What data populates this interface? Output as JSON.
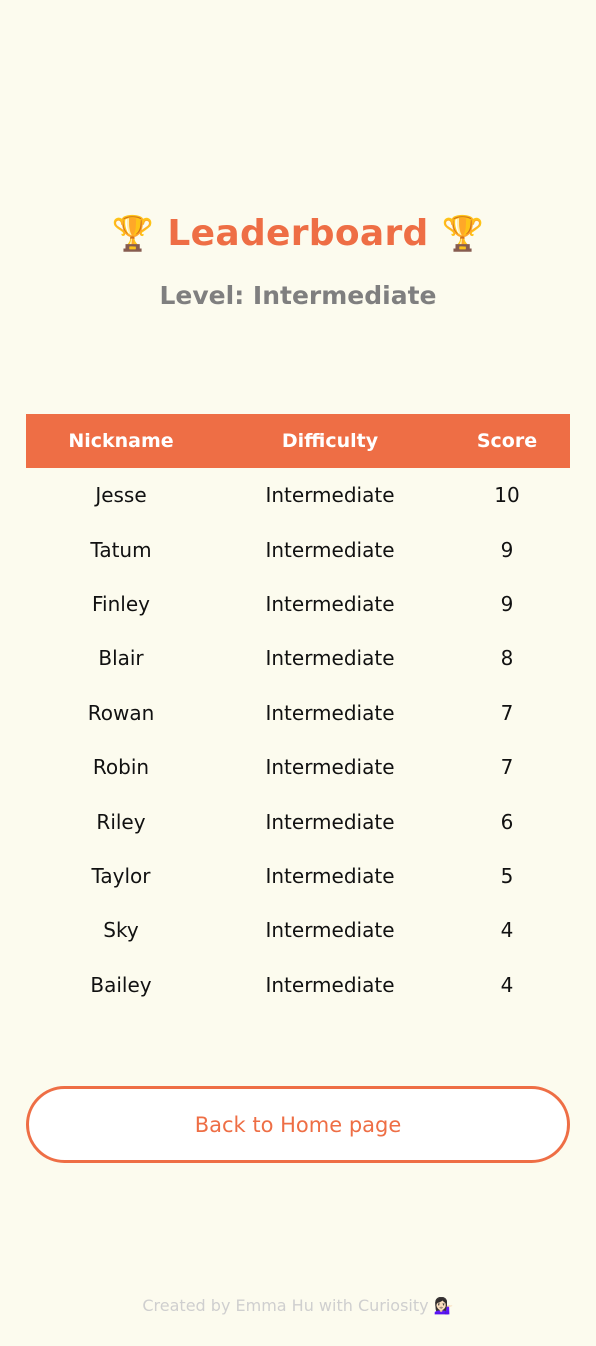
{
  "header": {
    "title": "Leaderboard",
    "trophy": "🏆",
    "level_label": "Level: Intermediate"
  },
  "table": {
    "columns": [
      "Nickname",
      "Difficulty",
      "Score"
    ],
    "rows": [
      {
        "nickname": "Jesse",
        "difficulty": "Intermediate",
        "score": "10"
      },
      {
        "nickname": "Tatum",
        "difficulty": "Intermediate",
        "score": "9"
      },
      {
        "nickname": "Finley",
        "difficulty": "Intermediate",
        "score": "9"
      },
      {
        "nickname": "Blair",
        "difficulty": "Intermediate",
        "score": "8"
      },
      {
        "nickname": "Rowan",
        "difficulty": "Intermediate",
        "score": "7"
      },
      {
        "nickname": "Robin",
        "difficulty": "Intermediate",
        "score": "7"
      },
      {
        "nickname": "Riley",
        "difficulty": "Intermediate",
        "score": "6"
      },
      {
        "nickname": "Taylor",
        "difficulty": "Intermediate",
        "score": "5"
      },
      {
        "nickname": "Sky",
        "difficulty": "Intermediate",
        "score": "4"
      },
      {
        "nickname": "Bailey",
        "difficulty": "Intermediate",
        "score": "4"
      }
    ]
  },
  "actions": {
    "home_label": "Back to Home page"
  },
  "footer": {
    "credit": "Created by Emma Hu with Curiosity 💁🏻‍♀️"
  },
  "colors": {
    "accent": "#ee6e45",
    "background": "#fcfbee",
    "subtitle": "#7f7f7f",
    "footer": "#cfcfcf"
  }
}
